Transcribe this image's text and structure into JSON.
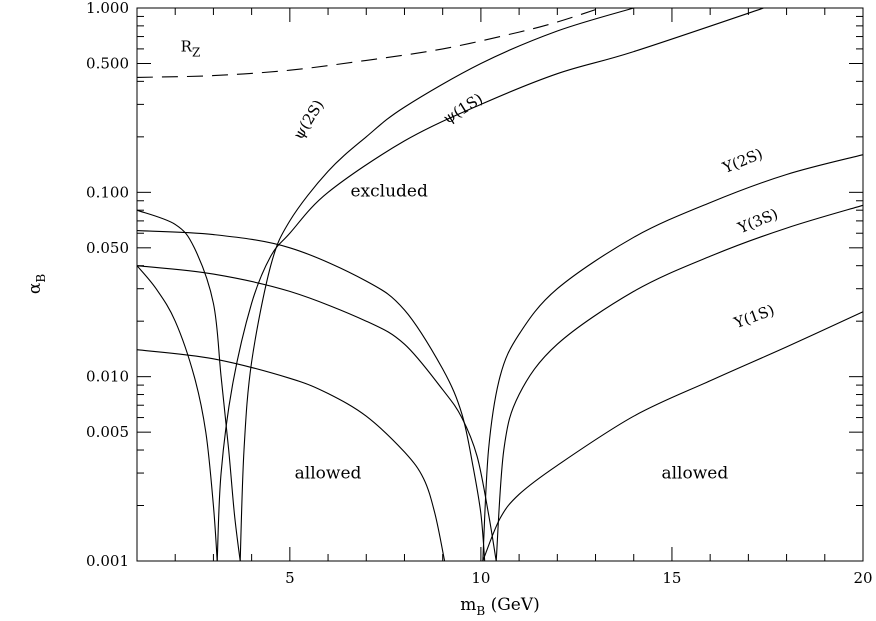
{
  "chart_data": {
    "type": "line",
    "title": "",
    "xlabel": "m",
    "xlabel_sub": "B",
    "xlabel_unit": " (GeV)",
    "ylabel": "α",
    "ylabel_sub": "B",
    "xlim": [
      1,
      20
    ],
    "ylim": [
      0.001,
      1.0
    ],
    "yscale": "log",
    "grid": false,
    "x_ticks": [
      5,
      10,
      15,
      20
    ],
    "x_tick_labels": [
      "5",
      "10",
      "15",
      "20"
    ],
    "y_ticks": [
      0.001,
      0.005,
      0.01,
      0.05,
      0.1,
      0.5,
      1.0
    ],
    "y_tick_labels": [
      "0.001",
      "0.005",
      "0.010",
      "0.050",
      "0.100",
      "0.500",
      "1.000"
    ],
    "series": [
      {
        "name": "R_Z",
        "dashed": true,
        "x": [
          1,
          3,
          5,
          7,
          9,
          11,
          12,
          13
        ],
        "y": [
          0.42,
          0.43,
          0.46,
          0.52,
          0.6,
          0.74,
          0.84,
          0.98
        ]
      },
      {
        "name": "ψ(2S)",
        "x": [
          3.7,
          3.8,
          4,
          4.5,
          5,
          6,
          7,
          8,
          10,
          12,
          14
        ],
        "y": [
          0.001,
          0.004,
          0.012,
          0.04,
          0.07,
          0.13,
          0.2,
          0.29,
          0.5,
          0.75,
          1.0
        ]
      },
      {
        "name": "ψ(1S)",
        "x": [
          3.1,
          3.2,
          3.5,
          4,
          4.5,
          5,
          6,
          8,
          10,
          12,
          14,
          17.4
        ],
        "y": [
          0.001,
          0.003,
          0.009,
          0.025,
          0.045,
          0.06,
          0.1,
          0.19,
          0.3,
          0.44,
          0.58,
          1.0
        ]
      },
      {
        "name": "Υ(2S)",
        "x": [
          10.05,
          10.2,
          10.5,
          11,
          12,
          14,
          16,
          18,
          20
        ],
        "y": [
          0.001,
          0.004,
          0.01,
          0.017,
          0.03,
          0.057,
          0.088,
          0.125,
          0.16
        ]
      },
      {
        "name": "Υ(3S)",
        "x": [
          10.4,
          10.6,
          11,
          12,
          14,
          16,
          18,
          20
        ],
        "y": [
          0.001,
          0.004,
          0.008,
          0.015,
          0.029,
          0.045,
          0.064,
          0.085
        ]
      },
      {
        "name": "Υ(1S)",
        "x": [
          10.05,
          10.5,
          11,
          12,
          14,
          16,
          18,
          20
        ],
        "y": [
          0.001,
          0.0017,
          0.0023,
          0.0033,
          0.0061,
          0.0095,
          0.0145,
          0.0225
        ]
      },
      {
        "name": "",
        "x": [
          1,
          2,
          2.5,
          3,
          3.2,
          3.4,
          3.55,
          3.7
        ],
        "y": [
          0.08,
          0.067,
          0.05,
          0.025,
          0.01,
          0.004,
          0.0018,
          0.001
        ]
      },
      {
        "name": "",
        "x": [
          1,
          1.5,
          2,
          2.5,
          2.8,
          3,
          3.1
        ],
        "y": [
          0.04,
          0.03,
          0.02,
          0.01,
          0.005,
          0.002,
          0.001
        ]
      },
      {
        "name": "",
        "x": [
          1,
          3,
          5,
          7,
          8,
          9,
          9.5,
          9.8,
          10,
          10.1
        ],
        "y": [
          0.062,
          0.059,
          0.05,
          0.033,
          0.023,
          0.011,
          0.0063,
          0.0032,
          0.0018,
          0.001
        ]
      },
      {
        "name": "",
        "x": [
          1,
          3,
          5,
          7,
          8,
          9,
          9.5,
          9.9,
          10.2,
          10.4
        ],
        "y": [
          0.04,
          0.036,
          0.029,
          0.02,
          0.015,
          0.0085,
          0.006,
          0.0037,
          0.0018,
          0.001
        ]
      },
      {
        "name": "",
        "x": [
          1,
          3,
          5,
          6,
          7,
          8,
          8.5,
          8.8,
          9.05
        ],
        "y": [
          0.014,
          0.0125,
          0.0098,
          0.0081,
          0.0061,
          0.0039,
          0.0028,
          0.0018,
          0.001
        ]
      }
    ],
    "annotations": [
      {
        "text": "R",
        "sub": "Z",
        "x": 2.4,
        "y": 0.58,
        "angle": 0
      },
      {
        "text": "ψ(2S)",
        "x": 5.6,
        "y": 0.24,
        "angle": -58
      },
      {
        "text": "ψ(1S)",
        "x": 9.6,
        "y": 0.27,
        "angle": -32
      },
      {
        "text": "Υ(2S)",
        "x": 16.9,
        "y": 0.14,
        "angle": -22
      },
      {
        "text": "Υ(3S)",
        "x": 17.3,
        "y": 0.066,
        "angle": -22
      },
      {
        "text": "Υ(1S)",
        "x": 17.2,
        "y": 0.02,
        "angle": -20
      }
    ],
    "regions": [
      {
        "text": "excluded",
        "x": 7.6,
        "y": 0.095
      },
      {
        "text": "allowed",
        "x": 6.0,
        "y": 0.0028
      },
      {
        "text": "allowed",
        "x": 15.6,
        "y": 0.0028
      }
    ]
  }
}
